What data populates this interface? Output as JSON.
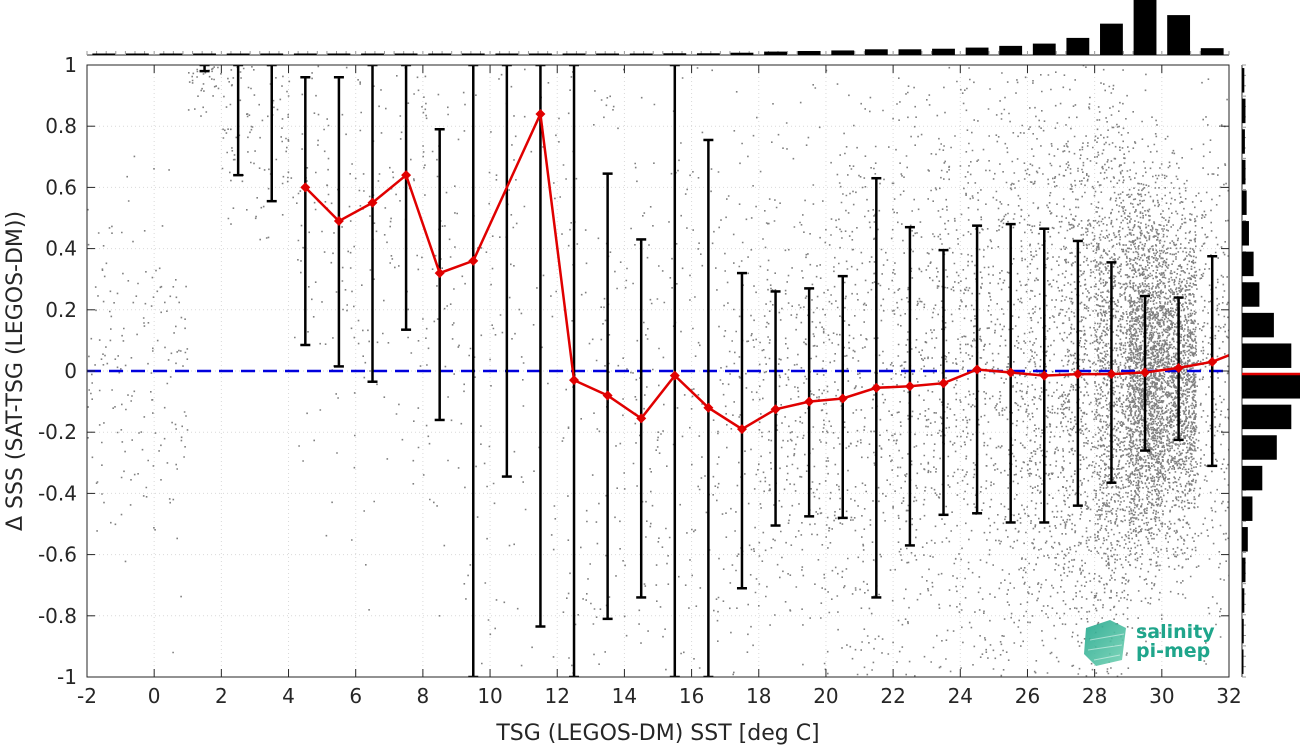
{
  "chart_data": {
    "type": "scatter",
    "xlabel": "TSG (LEGOS-DM) SST [deg C]",
    "ylabel": "Δ SSS (SAT-TSG (LEGOS-DM))",
    "xlim": [
      -2,
      32
    ],
    "ylim": [
      -1,
      1
    ],
    "xticks": [
      "-2",
      "0",
      "2",
      "4",
      "6",
      "8",
      "10",
      "12",
      "14",
      "16",
      "18",
      "20",
      "22",
      "24",
      "26",
      "28",
      "30",
      "32"
    ],
    "yticks": [
      "1",
      "0.8",
      "0.6",
      "0.4",
      "0.2",
      "0",
      "-0.2",
      "-0.4",
      "-0.6",
      "-0.8",
      "-1"
    ],
    "grid": true,
    "reference_line": {
      "y": 0,
      "style": "dashed",
      "color": "#0000dd"
    },
    "scatter_color": "#808080",
    "mean_line": {
      "color": "#e00000",
      "x": [
        4.5,
        5.5,
        6.5,
        7.5,
        8.5,
        9.5,
        11.5,
        12.5,
        13.5,
        14.5,
        15.5,
        16.5,
        17.5,
        18.5,
        19.5,
        20.5,
        21.5,
        22.5,
        23.5,
        24.5,
        25.5,
        26.5,
        27.5,
        28.5,
        29.5,
        30.5,
        31.5
      ],
      "y": [
        0.6,
        0.49,
        0.55,
        0.64,
        0.32,
        0.36,
        0.84,
        -0.03,
        -0.08,
        -0.155,
        -0.015,
        -0.12,
        -0.19,
        -0.125,
        -0.1,
        -0.09,
        -0.055,
        -0.05,
        -0.04,
        0.005,
        -0.005,
        -0.015,
        -0.01,
        -0.01,
        -0.005,
        0.01,
        0.03
      ]
    },
    "error_bars": {
      "color": "#000000",
      "x": [
        1.5,
        2.5,
        3.5,
        4.5,
        5.5,
        6.5,
        7.5,
        8.5,
        9.5,
        10.5,
        11.5,
        12.5,
        13.5,
        14.5,
        15.5,
        16.5,
        17.5,
        18.5,
        19.5,
        20.5,
        21.5,
        22.5,
        23.5,
        24.5,
        25.5,
        26.5,
        27.5,
        28.5,
        29.5,
        30.5,
        31.5
      ],
      "lower": [
        0.98,
        0.64,
        0.555,
        0.085,
        0.015,
        -0.035,
        0.135,
        -0.16,
        -1.0,
        -0.345,
        -0.835,
        -1.0,
        -0.81,
        -0.74,
        -1.0,
        -1.0,
        -0.71,
        -0.505,
        -0.475,
        -0.48,
        -0.74,
        -0.57,
        -0.47,
        -0.465,
        -0.495,
        -0.495,
        -0.44,
        -0.365,
        -0.26,
        -0.225,
        -0.31
      ],
      "upper": [
        1.0,
        1.0,
        1.0,
        0.96,
        0.96,
        1.0,
        1.0,
        0.79,
        1.0,
        1.0,
        1.0,
        1.0,
        0.645,
        0.43,
        1.0,
        0.755,
        0.32,
        0.26,
        0.27,
        0.31,
        0.63,
        0.47,
        0.395,
        0.475,
        0.48,
        0.465,
        0.425,
        0.355,
        0.245,
        0.24,
        0.375
      ]
    },
    "top_histogram": {
      "bin_centers": [
        -1.5,
        -0.5,
        0.5,
        1.5,
        2.5,
        3.5,
        4.5,
        5.5,
        6.5,
        7.5,
        8.5,
        9.5,
        10.5,
        11.5,
        12.5,
        13.5,
        14.5,
        15.5,
        16.5,
        17.5,
        18.5,
        19.5,
        20.5,
        21.5,
        22.5,
        23.5,
        24.5,
        25.5,
        26.5,
        27.5,
        28.5,
        29.5,
        30.5,
        31.5
      ],
      "values": [
        0.01,
        0.01,
        0.01,
        0.01,
        0.01,
        0.01,
        0.01,
        0.01,
        0.01,
        0.01,
        0.01,
        0.01,
        0.01,
        0.01,
        0.02,
        0.02,
        0.02,
        0.03,
        0.03,
        0.04,
        0.06,
        0.07,
        0.08,
        0.1,
        0.1,
        0.11,
        0.13,
        0.16,
        0.2,
        0.3,
        0.55,
        1.0,
        0.7,
        0.12
      ]
    },
    "right_histogram": {
      "bin_centers": [
        0.95,
        0.85,
        0.75,
        0.65,
        0.55,
        0.45,
        0.35,
        0.25,
        0.15,
        0.05,
        -0.05,
        -0.15,
        -0.25,
        -0.35,
        -0.45,
        -0.55,
        -0.65,
        -0.75,
        -0.85,
        -0.95
      ],
      "values": [
        0.04,
        0.06,
        0.05,
        0.06,
        0.08,
        0.12,
        0.2,
        0.3,
        0.55,
        0.85,
        1.0,
        0.85,
        0.6,
        0.35,
        0.18,
        0.1,
        0.06,
        0.04,
        0.03,
        0.02
      ],
      "mean_marker": {
        "y": -0.01,
        "color": "#e00000"
      }
    },
    "logo": {
      "line1": "salinity",
      "line2": "pi-mep"
    }
  }
}
